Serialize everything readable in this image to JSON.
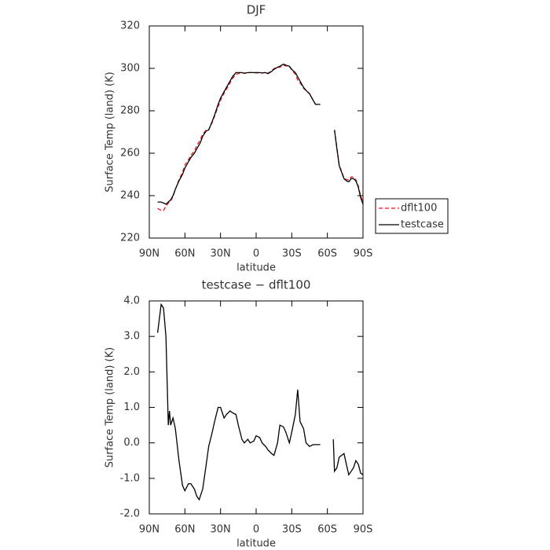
{
  "chart_data": [
    {
      "type": "line",
      "title": "DJF",
      "xlabel": "latitude",
      "ylabel": "Surface Temp (land) (K)",
      "xlim": [
        90,
        -90
      ],
      "xticks": [
        {
          "value": 90,
          "label": "90N"
        },
        {
          "value": 60,
          "label": "60N"
        },
        {
          "value": 30,
          "label": "30N"
        },
        0,
        {
          "value": -30,
          "label": "30S"
        },
        {
          "value": -60,
          "label": "60S"
        },
        {
          "value": -90,
          "label": "90S"
        }
      ],
      "ylim": [
        220,
        320
      ],
      "yticks": [
        220,
        240,
        260,
        280,
        300,
        320
      ],
      "legend": "right",
      "x": [
        83,
        80,
        78,
        76,
        74,
        72,
        70,
        68,
        65,
        62,
        60,
        57,
        55,
        52,
        50,
        47,
        45,
        42,
        40,
        37,
        35,
        32,
        30,
        27,
        25,
        22,
        20,
        17,
        15,
        12,
        10,
        7,
        5,
        2,
        0,
        -3,
        -5,
        -8,
        -10,
        -13,
        -15,
        -18,
        -20,
        -23,
        -25,
        -28,
        -30,
        -33,
        -35,
        -38,
        -40,
        -43,
        -45,
        -48,
        -50,
        -54,
        -60,
        -66,
        -68,
        -70,
        -72,
        -74,
        -76,
        -78,
        -80,
        -82,
        -84,
        -86,
        -88,
        -90
      ],
      "series": [
        {
          "name": "dflt100",
          "color": "#e8141c",
          "line_style": "dashed",
          "values": [
            234,
            233,
            233,
            235,
            236.5,
            237.5,
            239.5,
            243,
            247.5,
            251,
            254.5,
            257,
            259,
            261,
            263.5,
            266.5,
            269,
            271,
            271,
            274.5,
            277.5,
            282,
            285,
            288.3,
            290.2,
            293.1,
            295.2,
            297.2,
            297.5,
            297.9,
            297.7,
            297.9,
            298,
            298,
            297.8,
            297.9,
            297.8,
            298.1,
            297.7,
            298.8,
            299.9,
            300.5,
            300.5,
            301.5,
            301.2,
            301,
            299.2,
            297.2,
            294.5,
            292.4,
            290.6,
            289,
            288.1,
            285,
            283,
            283,
            null,
            270.9,
            262.7,
            254.4,
            251.4,
            248.3,
            247.6,
            247.4,
            248.8,
            248.7,
            247.5,
            244.6,
            239.8,
            236.9
          ]
        },
        {
          "name": "testcase",
          "color": "#000000",
          "line_style": "solid",
          "values": [
            237,
            237,
            236.5,
            236,
            237,
            238,
            240,
            243,
            247,
            250,
            253,
            256,
            258,
            260,
            262,
            265,
            268,
            270.5,
            271,
            275,
            278,
            283,
            286,
            289,
            291,
            294,
            296,
            298,
            298,
            298,
            297.7,
            298,
            298,
            298,
            298,
            298,
            297.8,
            298,
            297.5,
            298.5,
            299.5,
            300.5,
            301,
            302,
            301.5,
            301,
            299.5,
            298,
            296,
            293,
            291,
            289,
            288,
            285,
            283,
            283,
            null,
            271,
            262,
            254,
            251,
            248,
            247,
            246.5,
            248,
            248,
            247,
            244,
            239,
            236
          ]
        }
      ]
    },
    {
      "type": "line",
      "title": "testcase − dflt100",
      "xlabel": "latitude",
      "ylabel": "Surface Temp (land) (K)",
      "xlim": [
        90,
        -90
      ],
      "xticks": [
        {
          "value": 90,
          "label": "90N"
        },
        {
          "value": 60,
          "label": "60N"
        },
        {
          "value": 30,
          "label": "30N"
        },
        0,
        {
          "value": -30,
          "label": "30S"
        },
        {
          "value": -60,
          "label": "60S"
        },
        {
          "value": -90,
          "label": "90S"
        }
      ],
      "ylim": [
        -2,
        4
      ],
      "yticks": [
        {
          "value": -2,
          "label": "-2.0"
        },
        {
          "value": -1,
          "label": "-1.0"
        },
        {
          "value": 0,
          "label": "0.0"
        },
        {
          "value": 1,
          "label": "1.0"
        },
        {
          "value": 2,
          "label": "2.0"
        },
        {
          "value": 3,
          "label": "3.0"
        },
        {
          "value": 4,
          "label": "4.0"
        }
      ],
      "x": [
        83,
        80,
        78,
        76,
        74,
        73,
        72,
        70,
        68,
        65,
        62,
        60,
        57,
        55,
        52,
        50,
        48,
        45,
        42,
        40,
        37,
        35,
        32,
        30,
        27,
        25,
        22,
        20,
        17,
        15,
        12,
        10,
        7,
        5,
        2,
        0,
        -3,
        -5,
        -8,
        -10,
        -13,
        -15,
        -18,
        -20,
        -23,
        -25,
        -28,
        -30,
        -33,
        -35,
        -37,
        -40,
        -42,
        -45,
        -48,
        -54,
        -60,
        -65,
        -66,
        -68,
        -70,
        -72,
        -74,
        -76,
        -78,
        -80,
        -82,
        -84,
        -86,
        -88,
        -90
      ],
      "series": [
        {
          "color": "#000000",
          "line_style": "solid",
          "values": [
            3.1,
            3.9,
            3.8,
            3.0,
            0.5,
            0.9,
            0.5,
            0.7,
            0.4,
            -0.5,
            -1.2,
            -1.35,
            -1.15,
            -1.15,
            -1.3,
            -1.5,
            -1.6,
            -1.3,
            -0.6,
            -0.1,
            0.3,
            0.6,
            1.0,
            1.0,
            0.7,
            0.8,
            0.9,
            0.85,
            0.8,
            0.5,
            0.1,
            0.0,
            0.1,
            0.0,
            0.05,
            0.2,
            0.15,
            0.0,
            -0.1,
            -0.2,
            -0.3,
            -0.35,
            0.0,
            0.5,
            0.45,
            0.3,
            0.0,
            0.3,
            0.8,
            1.5,
            0.6,
            0.4,
            0.0,
            -0.1,
            -0.05,
            -0.05,
            null,
            0.1,
            -0.8,
            -0.7,
            -0.4,
            -0.35,
            -0.3,
            -0.6,
            -0.9,
            -0.8,
            -0.7,
            -0.5,
            -0.6,
            -0.85,
            -0.9
          ]
        }
      ]
    }
  ]
}
